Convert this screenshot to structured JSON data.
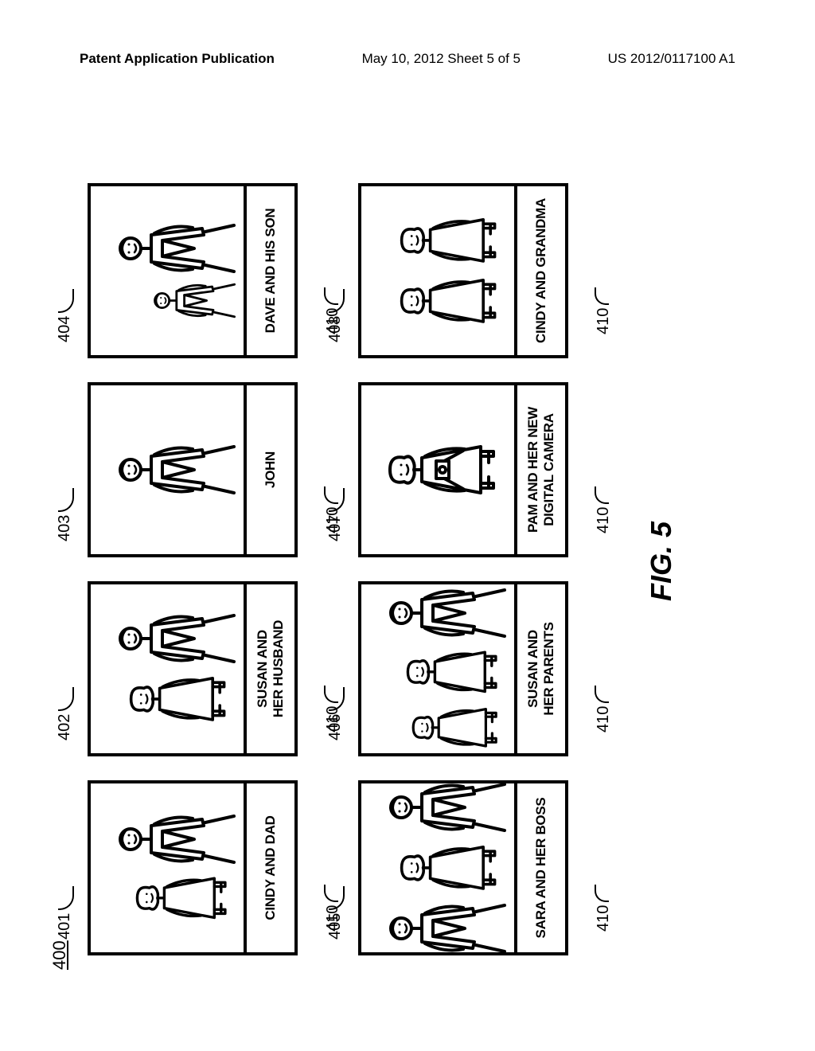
{
  "header": {
    "left": "Patent Application Publication",
    "center": "May 10, 2012  Sheet 5 of 5",
    "right": "US 2012/0117100 A1"
  },
  "figure": {
    "overall_ref": "400",
    "label": "FIG. 5",
    "caption_ref": "410",
    "panels": [
      {
        "ref": "401",
        "caption": "CINDY AND DAD",
        "people": [
          {
            "type": "female",
            "scale": 0.85
          },
          {
            "type": "male",
            "scale": 1.0
          }
        ]
      },
      {
        "ref": "402",
        "caption": "SUSAN AND\nHER HUSBAND",
        "people": [
          {
            "type": "female",
            "scale": 0.9
          },
          {
            "type": "male",
            "scale": 1.0
          }
        ]
      },
      {
        "ref": "403",
        "caption": "JOHN",
        "people": [
          {
            "type": "male",
            "scale": 1.0
          }
        ]
      },
      {
        "ref": "404",
        "caption": "DAVE AND HIS SON",
        "people": [
          {
            "type": "male",
            "scale": 0.7
          },
          {
            "type": "male",
            "scale": 1.0
          }
        ]
      },
      {
        "ref": "405",
        "caption": "SARA AND HER BOSS",
        "people": [
          {
            "type": "male",
            "scale": 1.0
          },
          {
            "type": "female",
            "scale": 0.9
          },
          {
            "type": "male",
            "scale": 1.0
          }
        ]
      },
      {
        "ref": "406",
        "caption": "SUSAN AND\nHER PARENTS",
        "people": [
          {
            "type": "female",
            "scale": 0.8
          },
          {
            "type": "female",
            "scale": 0.85
          },
          {
            "type": "male",
            "scale": 1.0
          }
        ]
      },
      {
        "ref": "407",
        "caption": "PAM AND HER NEW\nDIGITAL CAMERA",
        "people": [
          {
            "type": "female-camera",
            "scale": 1.0
          }
        ]
      },
      {
        "ref": "408",
        "caption": "CINDY AND GRANDMA",
        "people": [
          {
            "type": "female",
            "scale": 0.9
          },
          {
            "type": "female",
            "scale": 0.9
          }
        ]
      }
    ]
  }
}
